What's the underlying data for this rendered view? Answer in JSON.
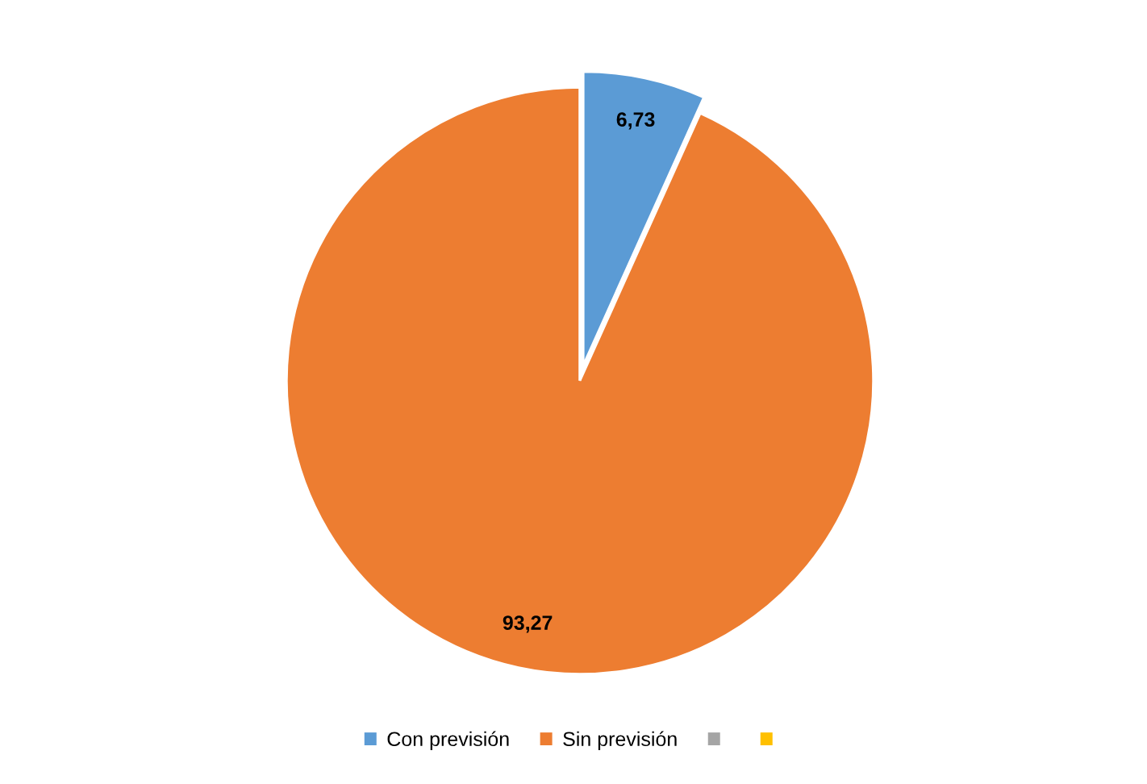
{
  "chart_data": {
    "type": "pie",
    "categories": [
      "Con previsión",
      "Sin previsión",
      null,
      null
    ],
    "values": [
      6.73,
      93.27,
      0,
      0
    ],
    "colors": [
      "#5b9bd5",
      "#ed7d31",
      "#a5a5a5",
      "#ffc000"
    ],
    "value_labels": [
      "6,73",
      "93,27",
      null,
      null
    ],
    "legend": "bottom"
  }
}
